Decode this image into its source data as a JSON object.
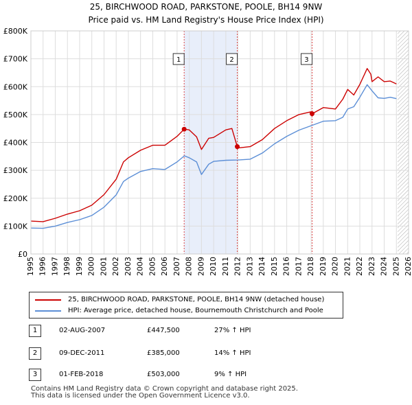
{
  "title_line1": "25, BIRCHWOOD ROAD, PARKSTONE, POOLE, BH14 9NW",
  "title_line2": "Price paid vs. HM Land Registry's House Price Index (HPI)",
  "colors": {
    "property_line": "#cc0000",
    "hpi_line": "#5b8ed6",
    "shade": "#e8eefa",
    "grid": "#dddddd",
    "vline": "#dd4444"
  },
  "legend": {
    "property_label": "25, BIRCHWOOD ROAD, PARKSTONE, POOLE, BH14 9NW (detached house)",
    "hpi_label": "HPI: Average price, detached house, Bournemouth Christchurch and Poole"
  },
  "transactions": [
    {
      "num": "1",
      "date": "02-AUG-2007",
      "price": "£447,500",
      "hpi": "27% ↑ HPI"
    },
    {
      "num": "2",
      "date": "09-DEC-2011",
      "price": "£385,000",
      "hpi": "14% ↑ HPI"
    },
    {
      "num": "3",
      "date": "01-FEB-2018",
      "price": "£503,000",
      "hpi": "9% ↑ HPI"
    }
  ],
  "footer_line1": "Contains HM Land Registry data © Crown copyright and database right 2025.",
  "footer_line2": "This data is licensed under the Open Government Licence v3.0.",
  "chart_data": {
    "type": "line",
    "xlim": [
      1995,
      2026
    ],
    "ylim": [
      0,
      800000
    ],
    "x_ticks": [
      1995,
      1996,
      1997,
      1998,
      1999,
      2000,
      2001,
      2002,
      2003,
      2004,
      2005,
      2006,
      2007,
      2008,
      2009,
      2010,
      2011,
      2012,
      2013,
      2014,
      2015,
      2016,
      2017,
      2018,
      2019,
      2020,
      2021,
      2022,
      2023,
      2024,
      2025,
      2026
    ],
    "y_ticks": [
      0,
      100000,
      200000,
      300000,
      400000,
      500000,
      600000,
      700000,
      800000
    ],
    "y_tick_labels": [
      "£0",
      "£100K",
      "£200K",
      "£300K",
      "£400K",
      "£500K",
      "£600K",
      "£700K",
      "£800K"
    ],
    "shaded_ranges": [
      [
        2007.58,
        2011.94
      ]
    ],
    "hatched_from": 2025.1,
    "sales": [
      {
        "label": "1",
        "x": 2007.58,
        "y": 447500
      },
      {
        "label": "2",
        "x": 2011.94,
        "y": 385000
      },
      {
        "label": "3",
        "x": 2018.08,
        "y": 503000
      }
    ],
    "series": [
      {
        "name": "25, BIRCHWOOD ROAD, PARKSTONE, POOLE, BH14 9NW (detached house)",
        "x": [
          1995,
          1996,
          1997,
          1998,
          1999,
          2000,
          2001,
          2002,
          2002.6,
          2003,
          2004,
          2005,
          2006,
          2007,
          2007.58,
          2008,
          2008.6,
          2009,
          2009.6,
          2010,
          2011,
          2011.5,
          2011.94,
          2012,
          2013,
          2014,
          2015,
          2016,
          2017,
          2018,
          2018.08,
          2019,
          2020,
          2020.6,
          2021,
          2021.5,
          2022,
          2022.6,
          2022.9,
          2023,
          2023.5,
          2024,
          2024.5,
          2025
        ],
        "y": [
          118000,
          116000,
          128000,
          143000,
          155000,
          175000,
          213000,
          268000,
          330000,
          345000,
          372000,
          390000,
          390000,
          422000,
          447500,
          445000,
          420000,
          375000,
          415000,
          418000,
          445000,
          450000,
          385000,
          380000,
          385000,
          410000,
          450000,
          478000,
          500000,
          510000,
          503000,
          525000,
          520000,
          555000,
          590000,
          570000,
          608000,
          665000,
          645000,
          618000,
          635000,
          618000,
          620000,
          610000
        ]
      },
      {
        "name": "HPI: Average price, detached house, Bournemouth Christchurch and Poole",
        "x": [
          1995,
          1996,
          1997,
          1998,
          1999,
          2000,
          2001,
          2002,
          2002.6,
          2003,
          2004,
          2005,
          2006,
          2007,
          2007.6,
          2008,
          2008.6,
          2009,
          2009.6,
          2010,
          2011,
          2012,
          2013,
          2014,
          2015,
          2016,
          2017,
          2018,
          2019,
          2020,
          2020.6,
          2021,
          2021.5,
          2022,
          2022.6,
          2023,
          2023.5,
          2024,
          2024.5,
          2025
        ],
        "y": [
          93000,
          92000,
          100000,
          113000,
          123000,
          138000,
          168000,
          212000,
          260000,
          272000,
          296000,
          306000,
          303000,
          330000,
          352000,
          345000,
          330000,
          285000,
          322000,
          332000,
          336000,
          337000,
          340000,
          362000,
          395000,
          422000,
          444000,
          460000,
          476000,
          478000,
          490000,
          520000,
          528000,
          562000,
          607000,
          585000,
          560000,
          558000,
          562000,
          557000
        ]
      }
    ]
  }
}
